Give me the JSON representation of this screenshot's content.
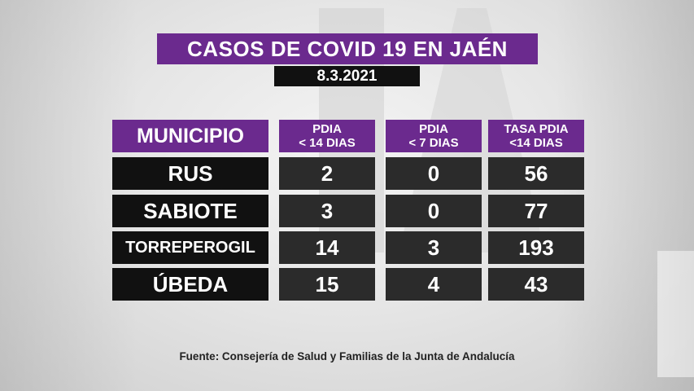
{
  "title": "CASOS DE COVID 19 EN JAÉN",
  "date": "8.3.2021",
  "table": {
    "headers": {
      "municipio": "MUNICIPIO",
      "pdia14_line1": "PDIA",
      "pdia14_line2": "< 14 DIAS",
      "pdia7_line1": "PDIA",
      "pdia7_line2": "< 7 DIAS",
      "tasa_line1": "TASA PDIA",
      "tasa_line2": "<14 DIAS"
    },
    "rows": [
      {
        "municipio": "RUS",
        "pdia14": "2",
        "pdia7": "0",
        "tasa": "56"
      },
      {
        "municipio": "SABIOTE",
        "pdia14": "3",
        "pdia7": "0",
        "tasa": "77"
      },
      {
        "municipio": "TORREPEROGIL",
        "pdia14": "14",
        "pdia7": "3",
        "tasa": "193"
      },
      {
        "municipio": "ÚBEDA",
        "pdia14": "15",
        "pdia7": "4",
        "tasa": "43"
      }
    ]
  },
  "source": "Fuente: Consejería de Salud y Familias de la Junta de Andalucía",
  "colors": {
    "accent": "#6b2a8e",
    "dark": "#111111",
    "cell": "#2b2b2b"
  }
}
